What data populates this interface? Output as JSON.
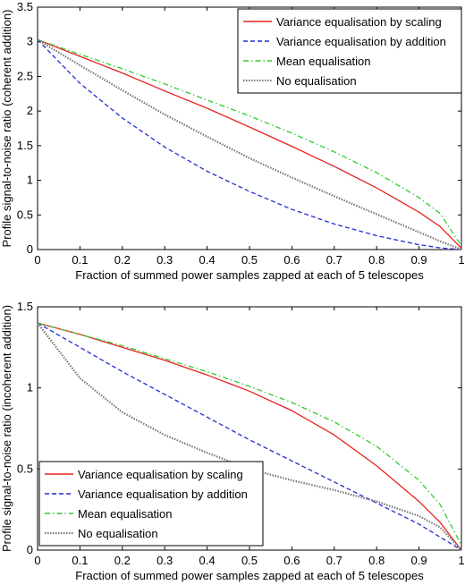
{
  "chart_data": [
    {
      "type": "line",
      "xlabel": "Fraction of summed power samples zapped at each of 5 telescopes",
      "ylabel": "Profile signal-to-noise ratio (coherent addition)",
      "xlim": [
        0,
        1
      ],
      "ylim": [
        0,
        3.5
      ],
      "xticks": [
        "0",
        "0.1",
        "0.2",
        "0.3",
        "0.4",
        "0.5",
        "0.6",
        "0.7",
        "0.8",
        "0.9",
        "1"
      ],
      "yticks": [
        "0",
        "0.5",
        "1",
        "1.5",
        "2",
        "2.5",
        "3",
        "3.5"
      ],
      "grid": false,
      "legend_position": "top-right",
      "x": [
        0,
        0.1,
        0.2,
        0.3,
        0.4,
        0.5,
        0.6,
        0.7,
        0.8,
        0.9,
        0.95,
        1.0
      ],
      "series": [
        {
          "name": "Variance equalisation by scaling",
          "color": "#e8221e",
          "dash": "solid",
          "values": [
            3.03,
            2.79,
            2.55,
            2.29,
            2.04,
            1.77,
            1.49,
            1.2,
            0.89,
            0.54,
            0.33,
            0.02
          ]
        },
        {
          "name": "Variance equalisation by addition",
          "color": "#1f2fd0",
          "dash": "dashed",
          "values": [
            3.03,
            2.4,
            1.9,
            1.48,
            1.13,
            0.84,
            0.58,
            0.37,
            0.2,
            0.07,
            0.025,
            0.0
          ]
        },
        {
          "name": "Mean equalisation",
          "color": "#2ecc2e",
          "dash": "dashdot",
          "values": [
            3.03,
            2.82,
            2.61,
            2.39,
            2.16,
            1.93,
            1.68,
            1.41,
            1.11,
            0.75,
            0.52,
            0.05
          ]
        },
        {
          "name": "No equalisation",
          "color": "#777777",
          "dash": "dotted",
          "values": [
            3.03,
            2.66,
            2.3,
            1.95,
            1.63,
            1.32,
            1.04,
            0.77,
            0.51,
            0.25,
            0.12,
            0.0
          ]
        }
      ]
    },
    {
      "type": "line",
      "xlabel": "Fraction of summed power samples zapped at each of 5 telescopes",
      "ylabel": "Profile signal-to-noise ratio (incoherent addition)",
      "xlim": [
        0,
        1
      ],
      "ylim": [
        0,
        1.5
      ],
      "xticks": [
        "0",
        "0.1",
        "0.2",
        "0.3",
        "0.4",
        "0.5",
        "0.6",
        "0.7",
        "0.8",
        "0.9",
        "1"
      ],
      "yticks": [
        "0",
        "0.5",
        "1",
        "1.5"
      ],
      "grid": false,
      "legend_position": "bottom-left",
      "x": [
        0,
        0.1,
        0.2,
        0.3,
        0.4,
        0.5,
        0.6,
        0.7,
        0.8,
        0.9,
        0.95,
        1.0
      ],
      "series": [
        {
          "name": "Variance equalisation by scaling",
          "color": "#e8221e",
          "dash": "solid",
          "values": [
            1.4,
            1.33,
            1.25,
            1.17,
            1.08,
            0.98,
            0.86,
            0.71,
            0.52,
            0.3,
            0.17,
            0.0
          ]
        },
        {
          "name": "Variance equalisation by addition",
          "color": "#1f2fd0",
          "dash": "dashed",
          "values": [
            1.4,
            1.25,
            1.1,
            0.96,
            0.82,
            0.68,
            0.55,
            0.42,
            0.29,
            0.16,
            0.08,
            0.0
          ]
        },
        {
          "name": "Mean equalisation",
          "color": "#2ecc2e",
          "dash": "dashdot",
          "values": [
            1.4,
            1.33,
            1.26,
            1.18,
            1.1,
            1.01,
            0.91,
            0.79,
            0.64,
            0.43,
            0.28,
            0.03
          ]
        },
        {
          "name": "No equalisation",
          "color": "#777777",
          "dash": "dotted",
          "values": [
            1.4,
            1.06,
            0.85,
            0.71,
            0.6,
            0.5,
            0.43,
            0.37,
            0.3,
            0.21,
            0.14,
            0.0
          ]
        }
      ]
    }
  ]
}
